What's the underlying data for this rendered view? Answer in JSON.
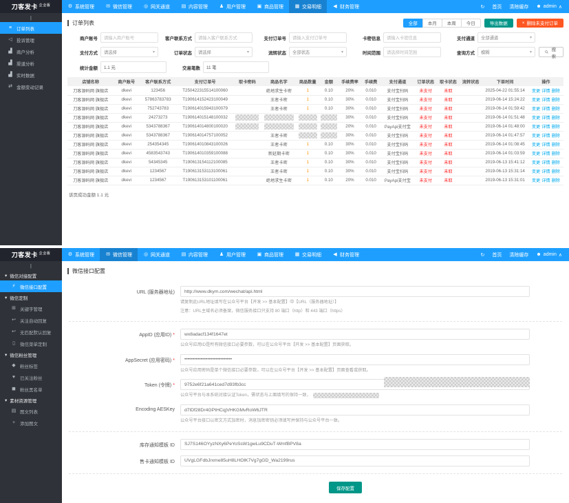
{
  "colors": {
    "accent": "#1E9FFF",
    "teal": "#009688",
    "orange": "#FF5722",
    "status_red": "#ff2b2b",
    "sidebar_dark": "#2F3238"
  },
  "brand": {
    "name": "刀客发卡",
    "edition": "企业版"
  },
  "navbar": {
    "items": [
      {
        "label": "系统管理",
        "icon": "gear-icon"
      },
      {
        "label": "微信管理",
        "icon": "wechat-icon"
      },
      {
        "label": "网关通道",
        "icon": "gateway-icon"
      },
      {
        "label": "内容管理",
        "icon": "content-icon"
      },
      {
        "label": "用户管理",
        "icon": "users-icon"
      },
      {
        "label": "商品管理",
        "icon": "goods-icon"
      },
      {
        "label": "交易明细",
        "icon": "stats-icon"
      },
      {
        "label": "财务管理",
        "icon": "finance-icon"
      }
    ],
    "right": {
      "home": "首页",
      "clear_cache": "清除缓存",
      "username": "admin"
    }
  },
  "orders_page": {
    "active_nav": "交易明细",
    "sidebar": [
      {
        "label": "订单列表",
        "icon": "list-icon",
        "active": true
      },
      {
        "label": "投诉管理",
        "icon": "complaint-icon",
        "active": false
      },
      {
        "label": "商户分析",
        "icon": "chart-icon",
        "active": false
      },
      {
        "label": "渠道分析",
        "icon": "chart-icon",
        "active": false
      },
      {
        "label": "实时数据",
        "icon": "chart-icon",
        "active": false
      },
      {
        "label": "金额变动记录",
        "icon": "exchange-icon",
        "active": false
      }
    ],
    "title": "订单列表",
    "range_buttons": [
      {
        "label": "全部",
        "active": true
      },
      {
        "label": "本月",
        "active": false
      },
      {
        "label": "本周",
        "active": false
      },
      {
        "label": "今日",
        "active": false
      }
    ],
    "export_button": "导出数据",
    "delete_unpaid_button": "删除未支付订单",
    "filters_row1": [
      {
        "label": "商户账号",
        "type": "input",
        "placeholder": "请输入商户账号"
      },
      {
        "label": "客户联系方式",
        "type": "input",
        "placeholder": "请输入客户联系方式"
      },
      {
        "label": "支付订单号",
        "type": "input",
        "placeholder": "请输入支付订单号"
      },
      {
        "label": "卡密信息",
        "type": "input",
        "placeholder": "请输入卡密信息"
      },
      {
        "label": "支付通道",
        "type": "select",
        "value": "全部通道"
      }
    ],
    "filters_row2": [
      {
        "label": "支付方式",
        "type": "select",
        "value": "请选择"
      },
      {
        "label": "订单状态",
        "type": "select",
        "value": "请选择"
      },
      {
        "label": "流转状态",
        "type": "select",
        "value": "全部状态"
      },
      {
        "label": "时间范围",
        "type": "input",
        "placeholder": "请选择时间范围"
      },
      {
        "label": "查询方式",
        "type": "select",
        "value": "模糊"
      }
    ],
    "search_button": "搜 索",
    "stats": [
      {
        "label": "统计金额",
        "value": "1.1 元"
      },
      {
        "label": "交易笔数",
        "value": "11 笔"
      }
    ],
    "table": {
      "columns": [
        "店铺名称",
        "商户账号",
        "客户联系方式",
        "支付订单号",
        "取卡密码",
        "商品名字",
        "商品数量",
        "金额",
        "手续费率",
        "手续费",
        "支付通道",
        "订单状态",
        "取卡状态",
        "流转状态",
        "下单时间",
        "操作"
      ],
      "store": "刀客源码网 旗舰店",
      "account": "dkevi",
      "order_status": "未支付",
      "card_status": "未取",
      "flow_status": "",
      "actions": [
        "变更",
        "详情",
        "删除"
      ],
      "rows": [
        {
          "contact": "123456",
          "order": "T250422315514100060",
          "card": "",
          "product": "绝地求生卡密",
          "qty": "1",
          "amount": "0.10",
          "rate": "20%",
          "fee": "0.010",
          "channel": "支付宝扫码",
          "time": "2025-04-22 01:55:14",
          "redact": []
        },
        {
          "contact": "57863783783",
          "order": "T190614152423100049",
          "card": "",
          "product": "王者卡密",
          "qty": "1",
          "amount": "0.10",
          "rate": "30%",
          "fee": "0.010",
          "channel": "支付宝扫码",
          "time": "2019-06-14 15:24:22",
          "redact": []
        },
        {
          "contact": "752743783",
          "order": "T190614015943100079",
          "card": "",
          "product": "王者卡密",
          "qty": "1",
          "amount": "0.10",
          "rate": "30%",
          "fee": "0.010",
          "channel": "支付宝扫码",
          "time": "2019-06-14 01:59:42",
          "redact": []
        },
        {
          "contact": "24273273",
          "order": "T190614015148100032",
          "card": "",
          "product": "",
          "qty": "",
          "amount": "",
          "rate": "30%",
          "fee": "0.010",
          "channel": "支付宝扫码",
          "time": "2019-06-14 01:51:48",
          "redact": [
            "card",
            "product",
            "qty",
            "amount"
          ]
        },
        {
          "contact": "5343788367",
          "order": "T190614014800100020",
          "card": "",
          "product": "",
          "qty": "",
          "amount": "",
          "rate": "20%",
          "fee": "0.010",
          "channel": "PayApi支付宝",
          "time": "2019-06-14 01:48:00",
          "redact": [
            "card",
            "product",
            "qty",
            "amount"
          ]
        },
        {
          "contact": "5343788367",
          "order": "T190614014757100052",
          "card": "",
          "product": "王者卡密",
          "qty": "",
          "amount": "",
          "rate": "30%",
          "fee": "0.010",
          "channel": "支付宝扫码",
          "time": "2019-06-14 01:47:57",
          "redact": [
            "qty",
            "amount"
          ]
        },
        {
          "contact": "254354345",
          "order": "T190614010843100026",
          "card": "",
          "product": "王者卡密",
          "qty": "1",
          "amount": "0.10",
          "rate": "30%",
          "fee": "0.010",
          "channel": "支付宝扫码",
          "time": "2019-06-14 01:08:45",
          "redact": []
        },
        {
          "contact": "4583543743",
          "order": "T190614010359100088",
          "card": "",
          "product": "新延期卡密",
          "qty": "1",
          "amount": "0.10",
          "rate": "30%",
          "fee": "0.010",
          "channel": "支付宝扫码",
          "time": "2019-06-14 01:03:59",
          "redact": []
        },
        {
          "contact": "54345345",
          "order": "T190613154112100085",
          "card": "",
          "product": "王者卡密",
          "qty": "1",
          "amount": "0.10",
          "rate": "30%",
          "fee": "0.010",
          "channel": "支付宝扫码",
          "time": "2019-06-13 15:41:12",
          "redact": []
        },
        {
          "contact": "1234567",
          "order": "T190613153113100061",
          "card": "",
          "product": "王者卡密",
          "qty": "1",
          "amount": "0.10",
          "rate": "30%",
          "fee": "0.010",
          "channel": "支付宝扫码",
          "time": "2019-06-13 15:31:14",
          "redact": []
        },
        {
          "contact": "1234567",
          "order": "T190613153101100061",
          "card": "",
          "product": "绝地求生卡密",
          "qty": "1",
          "amount": "0.10",
          "rate": "20%",
          "fee": "0.010",
          "channel": "PayApi支付宝",
          "time": "2019-06-13 15:31:01",
          "redact": []
        }
      ]
    },
    "page_summary": "该页成功金额 1.1 元"
  },
  "wechat_page": {
    "active_nav": "微信管理",
    "sidebar_groups": [
      {
        "label": "微信对接配置",
        "items": [
          {
            "label": "微信接口配置",
            "icon": "api-icon",
            "active": true
          }
        ]
      },
      {
        "label": "微信定制",
        "items": [
          {
            "label": "关键字管理",
            "icon": "keyword-icon",
            "active": false
          },
          {
            "label": "关注自动回复",
            "icon": "reply-icon",
            "active": false
          },
          {
            "label": "无匹配默认回复",
            "icon": "reply-icon",
            "active": false
          },
          {
            "label": "微信菜单定制",
            "icon": "phone-icon",
            "active": false
          }
        ]
      },
      {
        "label": "微信粉丝管理",
        "items": [
          {
            "label": "粉丝标签",
            "icon": "tag-icon",
            "active": false
          },
          {
            "label": "已关注粉丝",
            "icon": "fans-icon",
            "active": false
          },
          {
            "label": "粉丝黑名单",
            "icon": "blacklist-icon",
            "active": false
          }
        ]
      },
      {
        "label": "素材资源管理",
        "items": [
          {
            "label": "图文列表",
            "icon": "article-icon",
            "active": false
          },
          {
            "label": "添加图文",
            "icon": "add-icon",
            "active": false
          }
        ]
      }
    ],
    "title": "微信接口配置",
    "fields": [
      {
        "label": "URL (服务器地址)",
        "value": "http://www.dkym.com/wechat/api.html",
        "required": false,
        "helps": [
          "请复制此URL地址填写在公众号平台【开发 >> 基本配置】中【URL（服务器地址）】",
          "注意：URL主域名必须备案，微信服务接口只支持 80 端口（http）和 443 端口（https）"
        ],
        "divider_after": true,
        "redact_help": false
      },
      {
        "label": "AppID (应用ID)",
        "value": "wx8adacf134f1647et",
        "required": true,
        "helps": [
          "公众号应用ID是所有微信接口必要参数，可以在公众号平台【开发 >> 基本配置】页面获取。"
        ],
        "divider_after": false,
        "redact_help": false
      },
      {
        "label": "AppSecret (应用密码)",
        "value": "•••••••••••••••••••••••••••••",
        "required": true,
        "helps": [
          "公众号应用密码是单个微信接口必要参数，可以在公众号平台【开发 >> 基本配置】页面查看或获取。"
        ],
        "divider_after": false,
        "redact_help": false
      },
      {
        "label": "Token (令牌)",
        "value": "9752e6f21a641ced7d93fb3cc",
        "required": true,
        "helps": [
          "公众号平台与本系统对接认证Token，需状态与上面填写的保持一致，"
        ],
        "divider_after": false,
        "redact_help": true
      },
      {
        "label": "Encoding AESKey",
        "value": "d7lDf28Dr4GPtHCqjVHKGMvRoW6JTR",
        "required": false,
        "helps": [
          "公众号平台接口以密文方式加密时，消息加密密钥必须填写并保持与公众号平台一致。"
        ],
        "divider_after": true,
        "redact_help": false
      },
      {
        "label": "库存通知模板 ID",
        "value": "SJ7S146OYyzNXy6PeYoSsW1gwLu9CDuT-WmfBPV8a",
        "required": false,
        "helps": [],
        "divider_after": false,
        "redact_help": false
      },
      {
        "label": "售卡通知模板 ID",
        "value": "UVgLGFdbJrxme85uH8LHOlK7Vg7gGD_Wa2199rus",
        "required": false,
        "helps": [],
        "divider_after": true,
        "redact_help": false
      }
    ],
    "save_button": "保存配置"
  }
}
